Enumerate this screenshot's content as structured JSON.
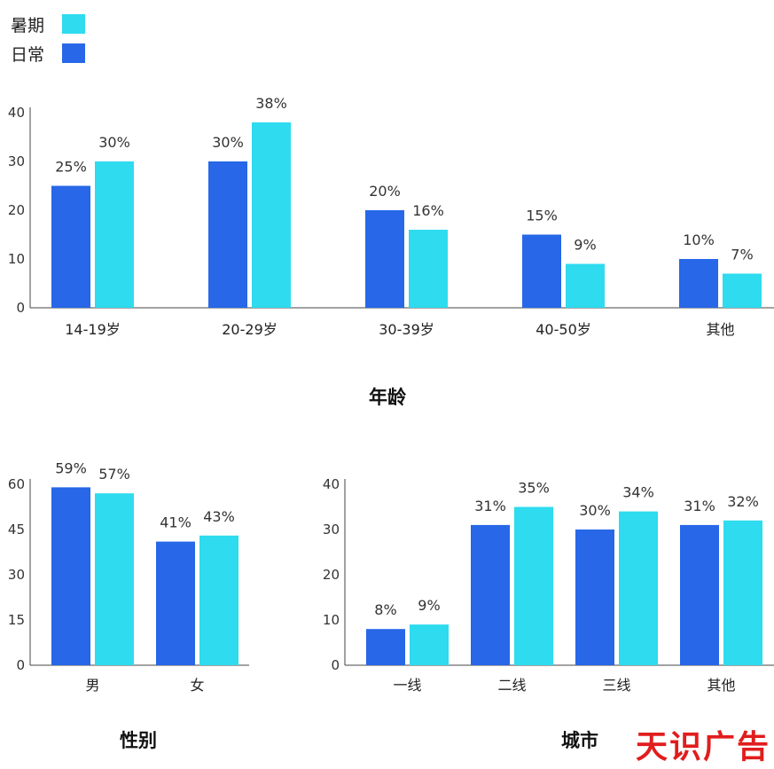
{
  "legend": [
    {
      "name": "暑期",
      "color": "#2edbef"
    },
    {
      "name": "日常",
      "color": "#2767e8"
    }
  ],
  "colors": {
    "日常": "#2767e8",
    "暑期": "#2edbef"
  },
  "watermark": "天识广告",
  "chart_data": [
    {
      "type": "bar",
      "title": "年龄",
      "categories": [
        "14-19岁",
        "20-29岁",
        "30-39岁",
        "40-50岁",
        "其他"
      ],
      "series": [
        {
          "name": "日常",
          "values": [
            25,
            30,
            20,
            15,
            10
          ],
          "labels": [
            "25%",
            "30%",
            "20%",
            "15%",
            "10%"
          ]
        },
        {
          "name": "暑期",
          "values": [
            30,
            38,
            16,
            9,
            7
          ],
          "labels": [
            "30%",
            "38%",
            "16%",
            "9%",
            "7%"
          ]
        }
      ],
      "yticks": [
        0,
        10,
        20,
        30,
        40
      ],
      "ylim": [
        0,
        40
      ],
      "grid": false
    },
    {
      "type": "bar",
      "title": "性别",
      "categories": [
        "男",
        "女"
      ],
      "series": [
        {
          "name": "日常",
          "values": [
            59,
            41
          ],
          "labels": [
            "59%",
            "41%"
          ]
        },
        {
          "name": "暑期",
          "values": [
            57,
            43
          ],
          "labels": [
            "57%",
            "43%"
          ]
        }
      ],
      "yticks": [
        0,
        15,
        30,
        45,
        60
      ],
      "ylim": [
        0,
        60
      ],
      "grid": false
    },
    {
      "type": "bar",
      "title": "城市",
      "categories": [
        "一线",
        "二线",
        "三线",
        "其他"
      ],
      "series": [
        {
          "name": "日常",
          "values": [
            8,
            31,
            30,
            31
          ],
          "labels": [
            "8%",
            "31%",
            "30%",
            "31%"
          ]
        },
        {
          "name": "暑期",
          "values": [
            9,
            35,
            34,
            32
          ],
          "labels": [
            "9%",
            "35%",
            "34%",
            "32%"
          ]
        }
      ],
      "yticks": [
        0,
        10,
        20,
        30,
        40
      ],
      "ylim": [
        0,
        40
      ],
      "grid": false
    }
  ]
}
